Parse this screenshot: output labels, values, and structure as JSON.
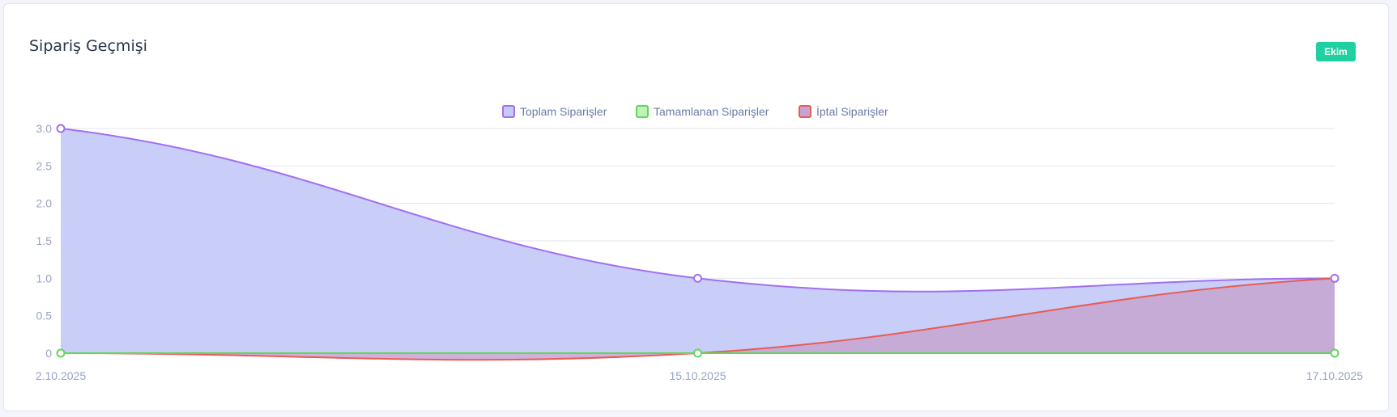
{
  "card": {
    "title": "Sipariş Geçmişi",
    "month_filter": "Ekim"
  },
  "chart_data": {
    "type": "area",
    "title": "Sipariş Geçmişi",
    "x": [
      "2.10.2025",
      "15.10.2025",
      "17.10.2025"
    ],
    "series": [
      {
        "name": "Toplam  Siparişler",
        "values": [
          3,
          1,
          1
        ],
        "stroke": "#a26ff0",
        "fill": "#c5cbf8"
      },
      {
        "name": "Tamamlanan Siparişler",
        "values": [
          0,
          0,
          0
        ],
        "stroke": "#62d65a",
        "fill": "#bff2b9"
      },
      {
        "name": "İptal Siparişler",
        "values": [
          0,
          0,
          1
        ],
        "stroke": "#ea5b53",
        "fill": "#c5a4d0"
      }
    ],
    "ylim": [
      0,
      3
    ],
    "yticks": [
      0,
      0.5,
      1.0,
      1.5,
      2.0,
      2.5,
      3.0
    ],
    "ytick_labels": [
      "0",
      "0.5",
      "1.0",
      "1.5",
      "2.0",
      "2.5",
      "3.0"
    ],
    "xlabel": "",
    "ylabel": "",
    "grid": true,
    "legend_position": "top-center"
  }
}
